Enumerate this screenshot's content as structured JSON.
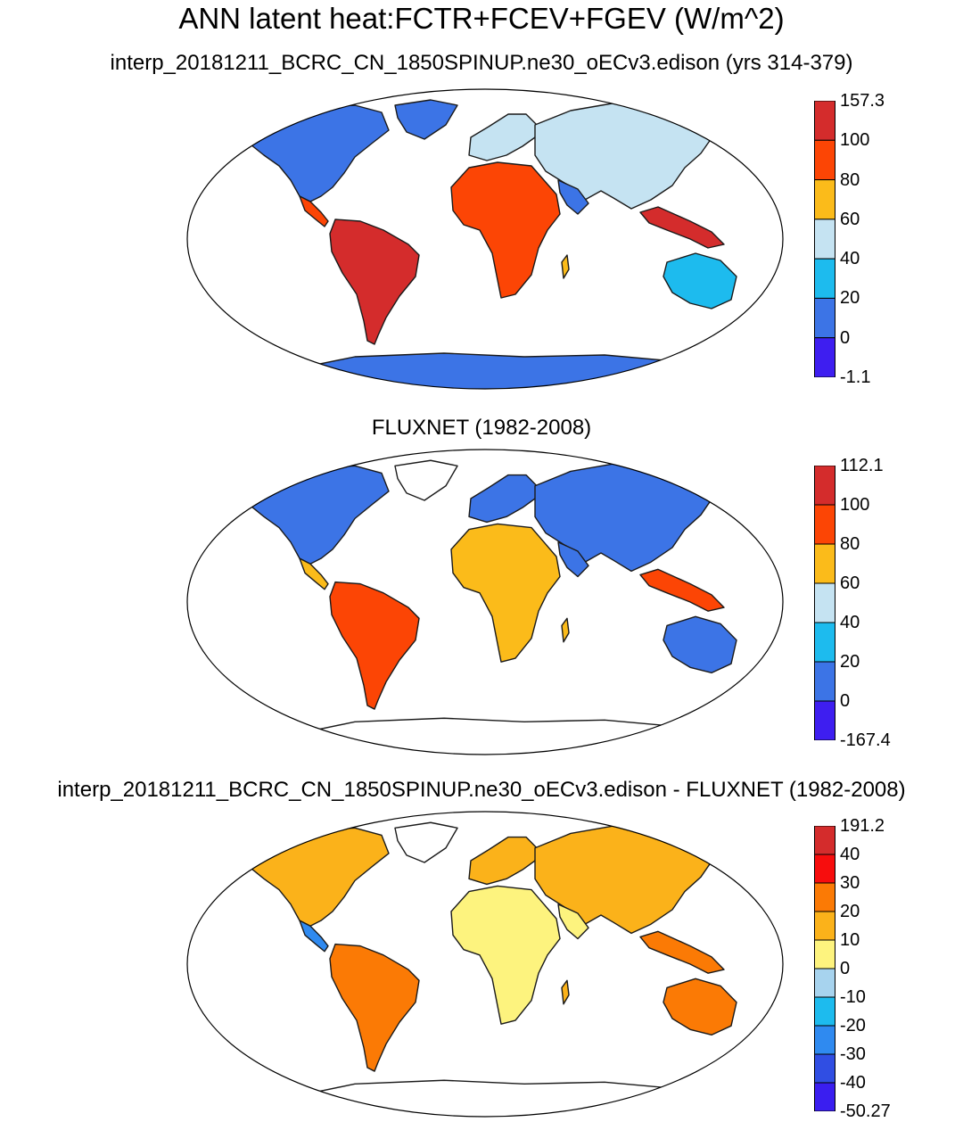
{
  "title": "ANN latent heat:FCTR+FCEV+FGEV (W/m^2)",
  "panels": [
    {
      "subtitle": "interp_20181211_BCRC_CN_1850SPINUP.ne30_oECv3.edison (yrs 314-379)",
      "colorbar": {
        "labels": [
          "157.3",
          "100",
          "80",
          "60",
          "40",
          "20",
          "0",
          "-1.1"
        ],
        "colors": [
          "#d42c2c",
          "#fc4505",
          "#fbbb1a",
          "#c5e3f2",
          "#1dbbee",
          "#3c74e6",
          "#3e1ef0"
        ]
      }
    },
    {
      "subtitle": "FLUXNET (1982-2008)",
      "colorbar": {
        "labels": [
          "112.1",
          "100",
          "80",
          "60",
          "40",
          "20",
          "0",
          "-167.4"
        ],
        "colors": [
          "#d42c2c",
          "#fc4505",
          "#fbbb1a",
          "#c5e3f2",
          "#1dbbee",
          "#3c74e6",
          "#3e1ef0"
        ]
      }
    },
    {
      "subtitle": "interp_20181211_BCRC_CN_1850SPINUP.ne30_oECv3.edison - FLUXNET (1982-2008)",
      "colorbar": {
        "labels": [
          "191.2",
          "40",
          "30",
          "20",
          "10",
          "0",
          "-10",
          "-20",
          "-30",
          "-40",
          "-50.27"
        ],
        "colors": [
          "#d42c2c",
          "#f70d0d",
          "#fb7a05",
          "#fbb21a",
          "#fdf37e",
          "#a7d3ee",
          "#1dbbee",
          "#2f8af0",
          "#304ee3",
          "#3a1ef0"
        ]
      }
    }
  ]
}
